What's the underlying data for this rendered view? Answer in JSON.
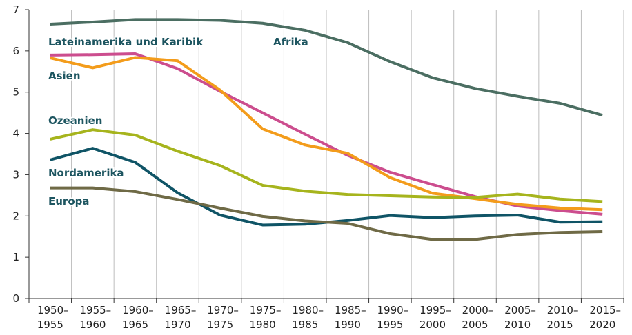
{
  "chart_data": {
    "type": "line",
    "categories": [
      [
        "1950–",
        "1955"
      ],
      [
        "1955–",
        "1960"
      ],
      [
        "1960–",
        "1965"
      ],
      [
        "1965–",
        "1970"
      ],
      [
        "1970–",
        "1975"
      ],
      [
        "1975–",
        "1980"
      ],
      [
        "1980–",
        "1985"
      ],
      [
        "1985–",
        "1990"
      ],
      [
        "1990–",
        "1995"
      ],
      [
        "1995–",
        "2000"
      ],
      [
        "2000–",
        "2005"
      ],
      [
        "2005–",
        "2010"
      ],
      [
        "2010–",
        "2015"
      ],
      [
        "2015–",
        "2020"
      ]
    ],
    "series": [
      {
        "name": "Afrika",
        "color": "#4b6e62",
        "values": [
          6.65,
          6.7,
          6.76,
          6.76,
          6.74,
          6.67,
          6.5,
          6.2,
          5.74,
          5.35,
          5.09,
          4.9,
          4.73,
          4.44
        ]
      },
      {
        "name": "Lateinamerika und Karibik",
        "color": "#cc4d8e",
        "values": [
          5.9,
          5.91,
          5.93,
          5.57,
          5.02,
          4.5,
          3.98,
          3.47,
          3.06,
          2.76,
          2.47,
          2.24,
          2.13,
          2.04
        ]
      },
      {
        "name": "Asien",
        "color": "#f39c1b",
        "values": [
          5.83,
          5.59,
          5.84,
          5.76,
          5.05,
          4.11,
          3.72,
          3.52,
          2.93,
          2.55,
          2.42,
          2.28,
          2.19,
          2.15
        ]
      },
      {
        "name": "Ozeanien",
        "color": "#a6b41d",
        "values": [
          3.86,
          4.09,
          3.96,
          3.57,
          3.22,
          2.74,
          2.6,
          2.52,
          2.49,
          2.46,
          2.45,
          2.53,
          2.41,
          2.35
        ]
      },
      {
        "name": "Nordamerika",
        "color": "#0f5466",
        "values": [
          3.36,
          3.64,
          3.3,
          2.56,
          2.02,
          1.78,
          1.8,
          1.89,
          2.01,
          1.96,
          2.0,
          2.02,
          1.85,
          1.86
        ]
      },
      {
        "name": "Europa",
        "color": "#6f6a46",
        "values": [
          2.68,
          2.68,
          2.59,
          2.4,
          2.19,
          1.99,
          1.88,
          1.82,
          1.57,
          1.43,
          1.43,
          1.55,
          1.6,
          1.62
        ]
      }
    ],
    "ylim": [
      0,
      7
    ],
    "yticks": [
      0,
      1,
      2,
      3,
      4,
      5,
      6,
      7
    ],
    "grid": true
  }
}
